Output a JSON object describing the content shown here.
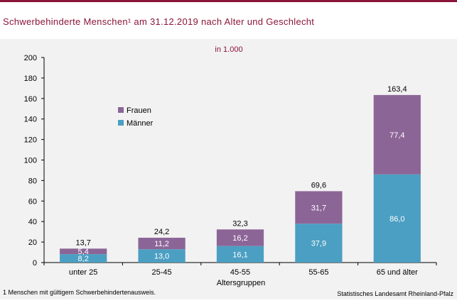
{
  "title": "Schwerbehinderte Menschen¹ am 31.12.2019 nach Alter und Geschlecht",
  "unit_label": "in 1.000",
  "footnote": "1 Menschen mit gültigem Schwerbehindertenausweis.",
  "source": "Statistisches Landesamt Rheinland-Pfalz",
  "colors": {
    "frauen": "#8c6597",
    "maenner": "#4b9fc2",
    "title": "#8a1538"
  },
  "chart_data": {
    "type": "bar",
    "stacked": true,
    "categories": [
      "unter 25",
      "25-45",
      "45-55",
      "55-65",
      "65 und älter"
    ],
    "series": [
      {
        "name": "Männer",
        "values": [
          8.2,
          13.0,
          16.1,
          37.9,
          86.0
        ]
      },
      {
        "name": "Frauen",
        "values": [
          5.4,
          11.2,
          16.2,
          31.7,
          77.4
        ]
      }
    ],
    "totals": [
      13.7,
      24.2,
      32.3,
      69.6,
      163.4
    ],
    "labels": {
      "maenner": [
        "8,2",
        "13,0",
        "16,1",
        "37,9",
        "86,0"
      ],
      "frauen": [
        "5,4",
        "11,2",
        "16,2",
        "31,7",
        "77,4"
      ],
      "totals": [
        "13,7",
        "24,2",
        "32,3",
        "69,6",
        "163,4"
      ]
    },
    "xlabel": "Altersgruppen",
    "ylabel": "",
    "ylim": [
      0,
      200
    ],
    "yticks": [
      0,
      20,
      40,
      60,
      80,
      100,
      120,
      140,
      160,
      180,
      200
    ],
    "legend": {
      "placement": "upper-left",
      "entries": [
        "Frauen",
        "Männer"
      ]
    },
    "grid": false
  }
}
